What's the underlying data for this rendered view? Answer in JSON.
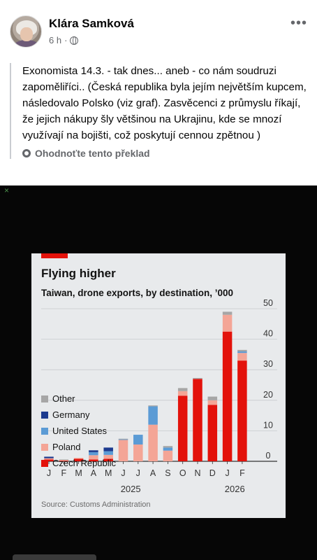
{
  "post": {
    "author": "Klára Samková",
    "time": "6 h",
    "separator": "·",
    "more_label": "•••",
    "text": "Exonomista 14.3. - tak dnes... aneb - co nám soudruzi zapoměliříci.. (Česká republika byla jejím největším kupcem, následovalo Polsko (viz graf). Zasvěcenci z průmyslu říkají, že jejich nákupy šly většinou na Ukrajinu, kde se mnozí využívají na bojišti, což poskytují cennou zpětnou )",
    "translate_label": "Ohodnoťte tento překlad"
  },
  "media": {
    "close_label": "×"
  },
  "chart_data": {
    "type": "bar",
    "stacked": true,
    "title": "Flying higher",
    "subtitle": "Taiwan, drone exports, by destination, ’000",
    "source": "Source: Customs Administration",
    "categories": [
      "J",
      "F",
      "M",
      "A",
      "M",
      "J",
      "J",
      "A",
      "S",
      "O",
      "N",
      "D",
      "J",
      "F"
    ],
    "year_labels": [
      "2025",
      "2026"
    ],
    "ylim": [
      0,
      50
    ],
    "yticks": [
      "0",
      "10",
      "20",
      "30",
      "40",
      "50"
    ],
    "ytick_values": [
      0,
      10,
      20,
      30,
      40,
      50
    ],
    "legend_placement": "left-middle",
    "series": [
      {
        "name": "Czech Republic",
        "color": "#e3120b",
        "values": [
          0.6,
          0.2,
          0.8,
          0.6,
          0.8,
          0,
          0,
          0,
          0,
          21.5,
          27,
          18.5,
          42.5,
          33
        ]
      },
      {
        "name": "Poland",
        "color": "#f4a596",
        "values": [
          0.4,
          0.2,
          0.3,
          1.4,
          1.3,
          7,
          5.5,
          12,
          3.5,
          1.5,
          0,
          1.5,
          5.5,
          2.5
        ]
      },
      {
        "name": "United States",
        "color": "#5b9bd5",
        "values": [
          0,
          0,
          0,
          1,
          1.2,
          0.2,
          3.2,
          6,
          1,
          0,
          0,
          0,
          0,
          0.5
        ]
      },
      {
        "name": "Germany",
        "color": "#1d3b8f",
        "values": [
          0.5,
          0,
          0,
          0.6,
          1.2,
          0,
          0,
          0,
          0,
          0,
          0,
          0,
          0,
          0
        ]
      },
      {
        "name": "Other",
        "color": "#a6a6a6",
        "values": [
          0,
          0.2,
          0,
          0,
          0,
          0.2,
          0,
          0.3,
          0.5,
          1.0,
          0.3,
          1.2,
          1.0,
          0.5
        ]
      }
    ]
  }
}
